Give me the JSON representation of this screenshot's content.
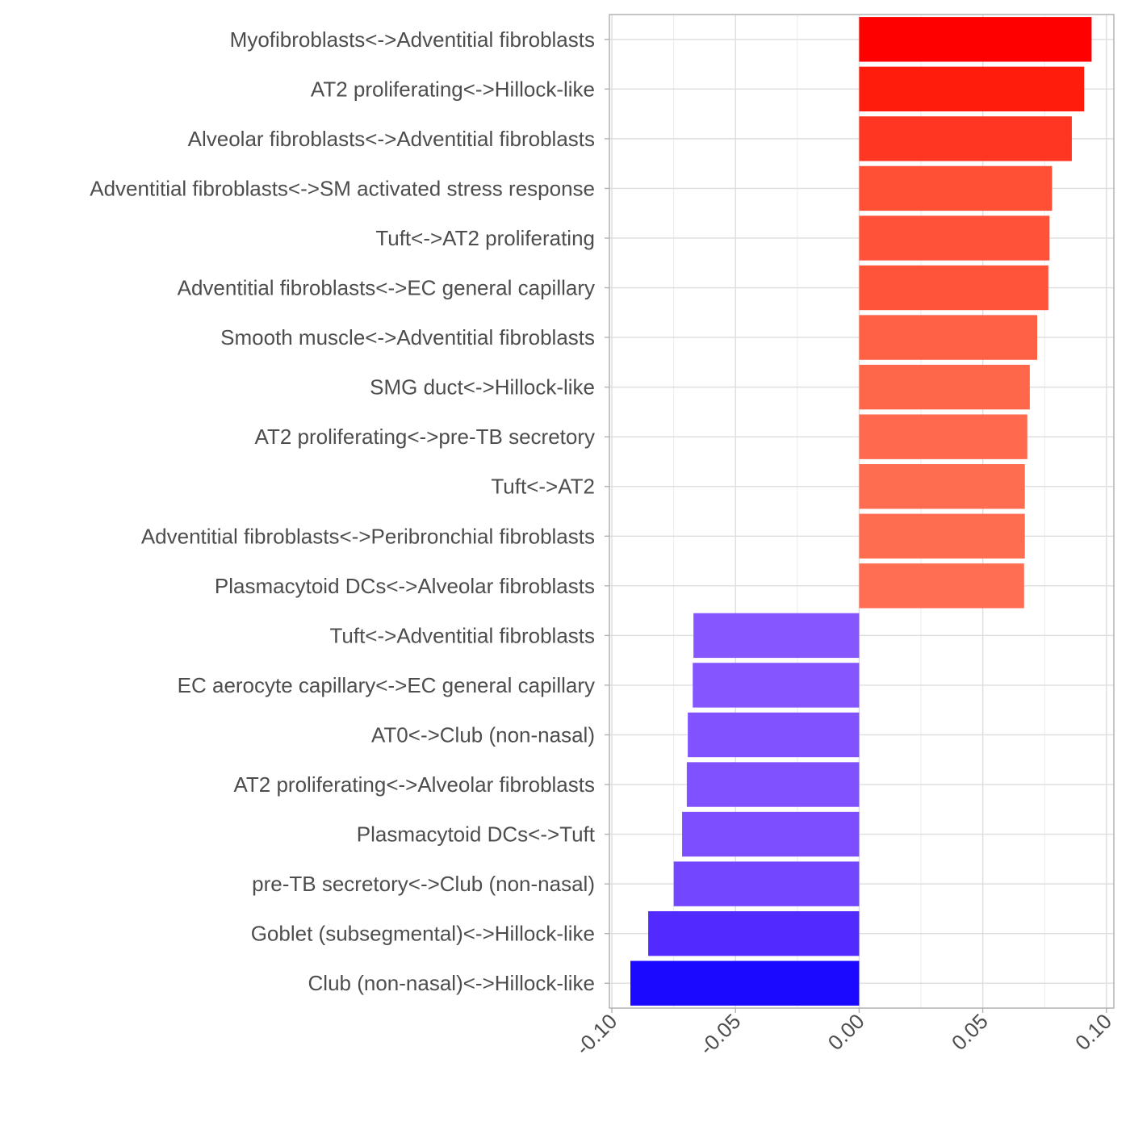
{
  "chart_data": {
    "type": "bar",
    "orientation": "horizontal",
    "categories": [
      "Myofibroblasts<->Adventitial fibroblasts",
      "AT2 proliferating<->Hillock-like",
      "Alveolar fibroblasts<->Adventitial fibroblasts",
      "Adventitial fibroblasts<->SM activated stress response",
      "Tuft<->AT2 proliferating",
      "Adventitial fibroblasts<->EC general capillary",
      "Smooth muscle<->Adventitial fibroblasts",
      "SMG duct<->Hillock-like",
      "AT2 proliferating<->pre-TB secretory",
      "Tuft<->AT2",
      "Adventitial fibroblasts<->Peribronchial fibroblasts",
      "Plasmacytoid DCs<->Alveolar fibroblasts",
      "Tuft<->Adventitial fibroblasts",
      "EC aerocyte capillary<->EC general capillary",
      "AT0<->Club (non-nasal)",
      "AT2 proliferating<->Alveolar fibroblasts",
      "Plasmacytoid DCs<->Tuft",
      "pre-TB secretory<->Club (non-nasal)",
      "Goblet (subsegmental)<->Hillock-like",
      "Club (non-nasal)<->Hillock-like"
    ],
    "values": [
      0.094,
      0.091,
      0.086,
      0.078,
      0.077,
      0.0765,
      0.072,
      0.069,
      0.068,
      0.067,
      0.067,
      0.0667,
      -0.067,
      -0.0673,
      -0.0693,
      -0.0697,
      -0.0716,
      -0.075,
      -0.0853,
      -0.0925
    ],
    "colors": [
      "#ff0000",
      "#ff1c0c",
      "#ff3621",
      "#ff4f35",
      "#ff5238",
      "#ff5439",
      "#ff6145",
      "#ff674b",
      "#ff6a4e",
      "#ff6d51",
      "#ff6d51",
      "#ff6e52",
      "#8656ff",
      "#8556ff",
      "#8152ff",
      "#8052ff",
      "#7d4eff",
      "#7347ff",
      "#5229ff",
      "#1a08ff"
    ],
    "xlim": [
      -0.101,
      0.103
    ],
    "xticks": [
      -0.1,
      -0.05,
      0.0,
      0.05,
      0.1
    ],
    "xtick_labels": [
      "-0.10",
      "-0.05",
      "0.00",
      "0.05",
      "0.10"
    ],
    "title": "",
    "xlabel": "",
    "ylabel": "",
    "grid": true,
    "legend": "none"
  }
}
